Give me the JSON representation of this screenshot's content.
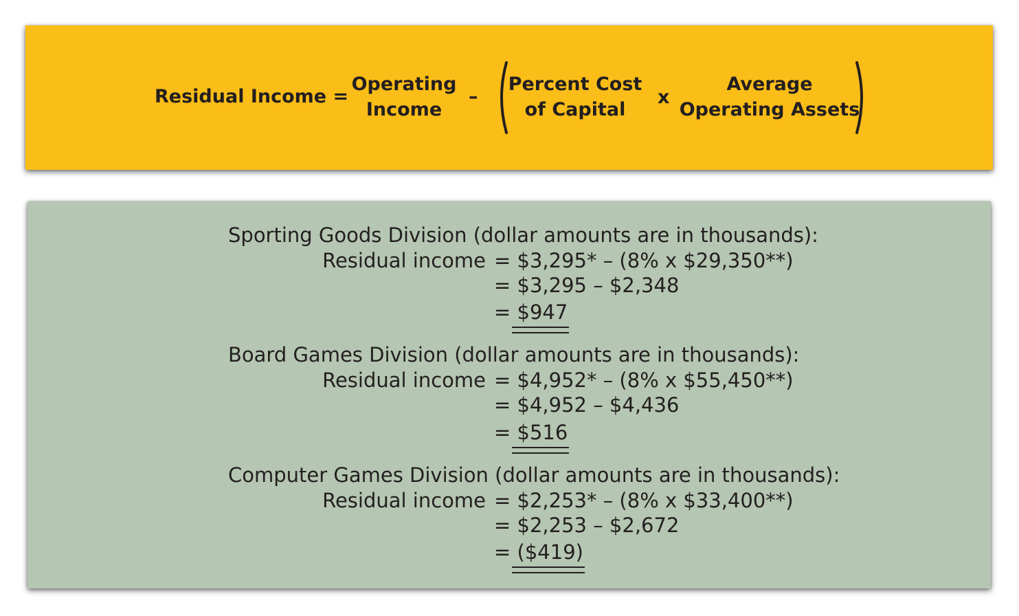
{
  "formula": {
    "lhs": "Residual Income =",
    "operating_income": [
      "Operating",
      "Income"
    ],
    "minus": "–",
    "percent_cost": [
      "Percent Cost",
      "of Capital"
    ],
    "times": "x",
    "average_assets": [
      "Average",
      "Operating Assets"
    ]
  },
  "divisions": [
    {
      "heading": "Sporting Goods Division (dollar amounts are in thousands):",
      "line1_label": "Residual income",
      "line1_expr": "= $3,295* – (8% x $29,350**)",
      "line2_expr": "= $3,295 – $2,348",
      "result_eq": "=",
      "result_value": "$947"
    },
    {
      "heading": "Board Games Division (dollar amounts are in thousands):",
      "line1_label": "Residual income",
      "line1_expr": "= $4,952* – (8% x $55,450**)",
      "line2_expr": "= $4,952 – $4,436",
      "result_eq": "=",
      "result_value": "$516"
    },
    {
      "heading": "Computer Games Division (dollar amounts are in thousands):",
      "line1_label": "Residual income",
      "line1_expr": "= $2,253* – (8% x $33,400**)",
      "line2_expr": "= $2,253 – $2,672",
      "result_eq": "=",
      "result_value": "($419)"
    }
  ],
  "colors": {
    "formula_background": "#fbbd17",
    "calculation_background": "#b5c6b2",
    "text": "#231f20"
  }
}
